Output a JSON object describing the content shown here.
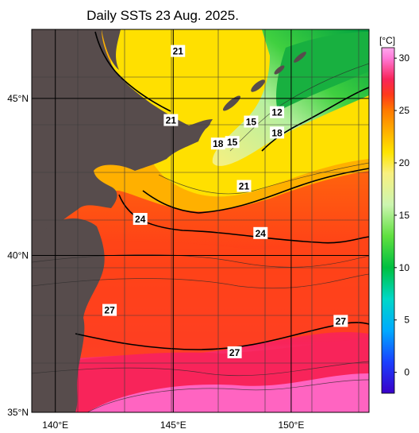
{
  "title": "Daily SSTs 23 Aug. 2025.",
  "map": {
    "lat_ticks": [
      {
        "label": "45°N",
        "lat": 45
      },
      {
        "label": "40°N",
        "lat": 40
      },
      {
        "label": "35°N",
        "lat": 35
      }
    ],
    "lon_ticks": [
      {
        "label": "140°E",
        "lon": 140
      },
      {
        "label": "145°E",
        "lon": 145
      },
      {
        "label": "150°E",
        "lon": 150
      }
    ],
    "extent": {
      "lon_min": 139,
      "lon_max": 153.3,
      "lat_min": 35,
      "lat_max": 47.2
    },
    "contour_labels": [
      {
        "text": "21",
        "lon": 145.2,
        "lat": 46.5
      },
      {
        "text": "12",
        "lon": 149.4,
        "lat": 44.55
      },
      {
        "text": "21",
        "lon": 144.9,
        "lat": 44.3
      },
      {
        "text": "15",
        "lon": 148.3,
        "lat": 44.25
      },
      {
        "text": "18",
        "lon": 149.4,
        "lat": 43.9
      },
      {
        "text": "18",
        "lon": 146.9,
        "lat": 43.55
      },
      {
        "text": "15",
        "lon": 147.5,
        "lat": 43.6
      },
      {
        "text": "21",
        "lon": 148.0,
        "lat": 42.2
      },
      {
        "text": "24",
        "lon": 143.6,
        "lat": 41.15
      },
      {
        "text": "24",
        "lon": 148.7,
        "lat": 40.7
      },
      {
        "text": "27",
        "lon": 142.3,
        "lat": 38.25
      },
      {
        "text": "27",
        "lon": 152.1,
        "lat": 37.9
      },
      {
        "text": "27",
        "lon": 147.6,
        "lat": 36.9
      }
    ]
  },
  "colorbar": {
    "unit": "[°C]",
    "min": -2,
    "max": 31,
    "ticks": [
      {
        "label": "30",
        "value": 30
      },
      {
        "label": "25",
        "value": 25
      },
      {
        "label": "20",
        "value": 20
      },
      {
        "label": "15",
        "value": 15
      },
      {
        "label": "10",
        "value": 10
      },
      {
        "label": "5",
        "value": 5
      },
      {
        "label": "0",
        "value": 0
      }
    ],
    "stops": [
      {
        "value": -2,
        "color": "#3a00c8"
      },
      {
        "value": 1,
        "color": "#1a40ff"
      },
      {
        "value": 4,
        "color": "#00aaff"
      },
      {
        "value": 7,
        "color": "#00d8c8"
      },
      {
        "value": 10,
        "color": "#00c040"
      },
      {
        "value": 13,
        "color": "#60e040"
      },
      {
        "value": 16,
        "color": "#ccf5b0"
      },
      {
        "value": 19,
        "color": "#f8f080"
      },
      {
        "value": 21,
        "color": "#ffe400"
      },
      {
        "value": 23,
        "color": "#ffb000"
      },
      {
        "value": 25,
        "color": "#ff7a00"
      },
      {
        "value": 26.5,
        "color": "#ff3a1a"
      },
      {
        "value": 28,
        "color": "#f8245a"
      },
      {
        "value": 30,
        "color": "#ff7ad8"
      },
      {
        "value": 31,
        "color": "#ffa8ee"
      }
    ]
  },
  "colors": {
    "land": "#574c4c",
    "grid": "#3a3a3a",
    "frame": "#000000"
  }
}
